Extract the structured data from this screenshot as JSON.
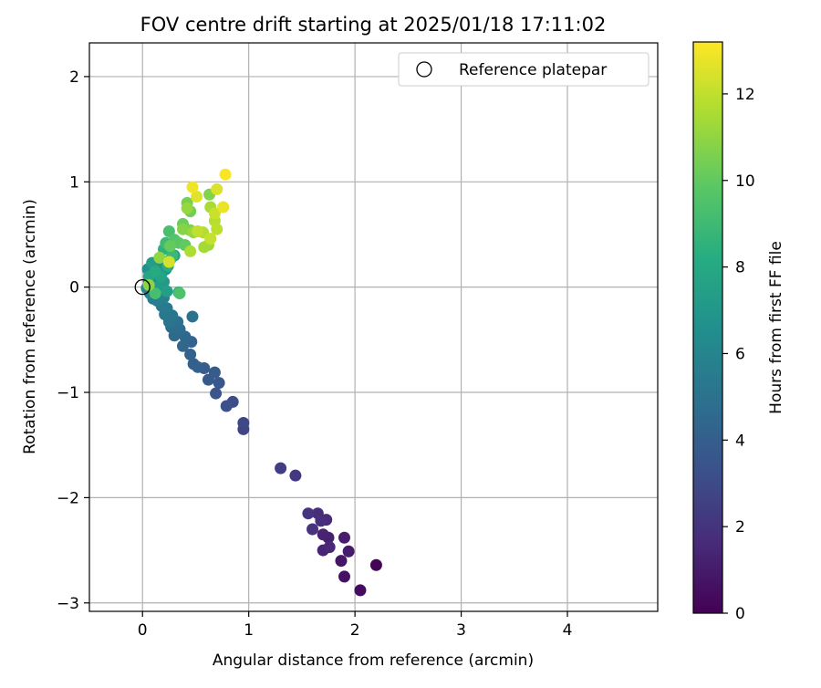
{
  "chart_data": {
    "type": "scatter",
    "title": "FOV centre drift starting at 2025/01/18 17:11:02",
    "xlabel": "Angular distance from reference (arcmin)",
    "ylabel": "Rotation from reference (arcmin)",
    "xlim": [
      -0.5,
      4.85
    ],
    "ylim": [
      -3.08,
      2.32
    ],
    "xticks": [
      0,
      1,
      2,
      3,
      4
    ],
    "yticks": [
      2,
      1,
      0,
      -1,
      -2,
      -3
    ],
    "grid": true,
    "legend": {
      "entries": [
        {
          "label": "Reference platepar",
          "marker": "open-circle"
        }
      ],
      "position": "upper right"
    },
    "reference_point": {
      "x": 0,
      "y": 0
    },
    "colorbar": {
      "label": "Hours from first FF file",
      "min": 0,
      "max": 13.2,
      "ticks": [
        0,
        2,
        4,
        6,
        8,
        10,
        12
      ],
      "colormap": "viridis"
    },
    "series": [
      {
        "points": [
          {
            "x": 2.2,
            "y": -2.64,
            "c": 0.1
          },
          {
            "x": 2.05,
            "y": -2.88,
            "c": 0.4
          },
          {
            "x": 1.9,
            "y": -2.75,
            "c": 0.6
          },
          {
            "x": 1.87,
            "y": -2.6,
            "c": 0.8
          },
          {
            "x": 1.94,
            "y": -2.51,
            "c": 1.0
          },
          {
            "x": 1.9,
            "y": -2.38,
            "c": 1.1
          },
          {
            "x": 1.75,
            "y": -2.38,
            "c": 1.2
          },
          {
            "x": 1.7,
            "y": -2.35,
            "c": 1.3
          },
          {
            "x": 1.7,
            "y": -2.5,
            "c": 1.4
          },
          {
            "x": 1.76,
            "y": -2.47,
            "c": 1.5
          },
          {
            "x": 1.73,
            "y": -2.21,
            "c": 1.6
          },
          {
            "x": 1.65,
            "y": -2.15,
            "c": 1.7
          },
          {
            "x": 1.68,
            "y": -2.22,
            "c": 1.8
          },
          {
            "x": 1.6,
            "y": -2.3,
            "c": 1.9
          },
          {
            "x": 1.56,
            "y": -2.15,
            "c": 2.0
          },
          {
            "x": 1.44,
            "y": -1.79,
            "c": 2.2
          },
          {
            "x": 1.3,
            "y": -1.72,
            "c": 2.4
          },
          {
            "x": 0.95,
            "y": -1.35,
            "c": 2.7
          },
          {
            "x": 0.95,
            "y": -1.29,
            "c": 2.9
          },
          {
            "x": 0.85,
            "y": -1.09,
            "c": 3.1
          },
          {
            "x": 0.79,
            "y": -1.13,
            "c": 3.3
          },
          {
            "x": 0.69,
            "y": -1.01,
            "c": 3.5
          },
          {
            "x": 0.72,
            "y": -0.91,
            "c": 3.6
          },
          {
            "x": 0.62,
            "y": -0.88,
            "c": 3.7
          },
          {
            "x": 0.68,
            "y": -0.81,
            "c": 3.8
          },
          {
            "x": 0.58,
            "y": -0.77,
            "c": 3.9
          },
          {
            "x": 0.52,
            "y": -0.76,
            "c": 4.0
          },
          {
            "x": 0.48,
            "y": -0.73,
            "c": 4.1
          },
          {
            "x": 0.45,
            "y": -0.64,
            "c": 4.2
          },
          {
            "x": 0.46,
            "y": -0.52,
            "c": 4.3
          },
          {
            "x": 0.38,
            "y": -0.56,
            "c": 4.4
          },
          {
            "x": 0.4,
            "y": -0.47,
            "c": 4.5
          },
          {
            "x": 0.3,
            "y": -0.46,
            "c": 4.6
          },
          {
            "x": 0.35,
            "y": -0.4,
            "c": 4.7
          },
          {
            "x": 0.27,
            "y": -0.38,
            "c": 4.8
          },
          {
            "x": 0.33,
            "y": -0.33,
            "c": 4.9
          },
          {
            "x": 0.47,
            "y": -0.28,
            "c": 5.0
          },
          {
            "x": 0.25,
            "y": -0.33,
            "c": 5.1
          },
          {
            "x": 0.28,
            "y": -0.27,
            "c": 5.2
          },
          {
            "x": 0.21,
            "y": -0.26,
            "c": 5.3
          },
          {
            "x": 0.23,
            "y": -0.2,
            "c": 5.4
          },
          {
            "x": 0.18,
            "y": -0.18,
            "c": 5.5
          },
          {
            "x": 0.14,
            "y": -0.13,
            "c": 5.6
          },
          {
            "x": 0.1,
            "y": -0.11,
            "c": 5.7
          },
          {
            "x": 0.2,
            "y": -0.1,
            "c": 5.8
          },
          {
            "x": 0.07,
            "y": -0.06,
            "c": 5.9
          },
          {
            "x": 0.04,
            "y": -0.01,
            "c": 6.0
          },
          {
            "x": 0.06,
            "y": 0.06,
            "c": 6.1
          },
          {
            "x": 0.1,
            "y": 0.04,
            "c": 6.2
          },
          {
            "x": 0.13,
            "y": 0.08,
            "c": 6.3
          },
          {
            "x": 0.08,
            "y": 0.13,
            "c": 6.4
          },
          {
            "x": 0.05,
            "y": 0.17,
            "c": 6.5
          },
          {
            "x": 0.12,
            "y": 0.2,
            "c": 6.6
          },
          {
            "x": 0.16,
            "y": 0.23,
            "c": 6.7
          },
          {
            "x": 0.18,
            "y": 0.13,
            "c": 6.8
          },
          {
            "x": 0.22,
            "y": 0.17,
            "c": 6.9
          },
          {
            "x": 0.26,
            "y": 0.26,
            "c": 7.0
          },
          {
            "x": 0.2,
            "y": 0.05,
            "c": 7.1
          },
          {
            "x": 0.14,
            "y": 0.0,
            "c": 7.2
          },
          {
            "x": 0.09,
            "y": 0.23,
            "c": 7.3
          },
          {
            "x": 0.23,
            "y": -0.04,
            "c": 7.4
          },
          {
            "x": 0.3,
            "y": 0.3,
            "c": 7.5
          },
          {
            "x": 0.17,
            "y": 0.1,
            "c": 7.7
          },
          {
            "x": 0.06,
            "y": 0.1,
            "c": 7.9
          },
          {
            "x": 0.12,
            "y": 0.15,
            "c": 8.1
          },
          {
            "x": 0.24,
            "y": 0.2,
            "c": 8.3
          },
          {
            "x": 0.2,
            "y": 0.36,
            "c": 8.5
          },
          {
            "x": 0.34,
            "y": -0.05,
            "c": 8.7
          },
          {
            "x": 0.28,
            "y": 0.3,
            "c": 8.9
          },
          {
            "x": 0.22,
            "y": 0.42,
            "c": 9.0
          },
          {
            "x": 0.12,
            "y": -0.06,
            "c": 9.2
          },
          {
            "x": 0.25,
            "y": 0.53,
            "c": 9.3
          },
          {
            "x": 0.35,
            "y": -0.06,
            "c": 9.5
          },
          {
            "x": 0.3,
            "y": 0.45,
            "c": 9.6
          },
          {
            "x": 0.34,
            "y": 0.42,
            "c": 9.8
          },
          {
            "x": 0.4,
            "y": 0.4,
            "c": 10.0
          },
          {
            "x": 0.26,
            "y": 0.39,
            "c": 10.1
          },
          {
            "x": 0.38,
            "y": 0.6,
            "c": 10.2
          },
          {
            "x": 0.45,
            "y": 0.72,
            "c": 10.4
          },
          {
            "x": 0.42,
            "y": 0.8,
            "c": 10.5
          },
          {
            "x": 0.45,
            "y": 0.54,
            "c": 10.6
          },
          {
            "x": 0.63,
            "y": 0.88,
            "c": 10.7
          },
          {
            "x": 0.38,
            "y": 0.55,
            "c": 10.8
          },
          {
            "x": 0.06,
            "y": 0.02,
            "c": 10.9
          },
          {
            "x": 0.16,
            "y": 0.28,
            "c": 11.0
          },
          {
            "x": 0.42,
            "y": 0.75,
            "c": 11.1
          },
          {
            "x": 0.48,
            "y": 0.52,
            "c": 11.2
          },
          {
            "x": 0.62,
            "y": 0.4,
            "c": 11.3
          },
          {
            "x": 0.58,
            "y": 0.38,
            "c": 11.4
          },
          {
            "x": 0.64,
            "y": 0.76,
            "c": 11.5
          },
          {
            "x": 0.45,
            "y": 0.34,
            "c": 11.6
          },
          {
            "x": 0.57,
            "y": 0.52,
            "c": 11.7
          },
          {
            "x": 0.68,
            "y": 0.63,
            "c": 11.8
          },
          {
            "x": 0.7,
            "y": 0.55,
            "c": 11.9
          },
          {
            "x": 0.52,
            "y": 0.53,
            "c": 12.0
          },
          {
            "x": 0.64,
            "y": 0.46,
            "c": 12.1
          },
          {
            "x": 0.68,
            "y": 0.7,
            "c": 12.2
          },
          {
            "x": 0.25,
            "y": 0.24,
            "c": 12.4
          },
          {
            "x": 0.7,
            "y": 0.93,
            "c": 12.5
          },
          {
            "x": 0.51,
            "y": 0.86,
            "c": 12.6
          },
          {
            "x": 0.76,
            "y": 0.76,
            "c": 12.8
          },
          {
            "x": 0.47,
            "y": 0.95,
            "c": 12.9
          },
          {
            "x": 0.78,
            "y": 1.07,
            "c": 13.1
          }
        ]
      }
    ]
  }
}
